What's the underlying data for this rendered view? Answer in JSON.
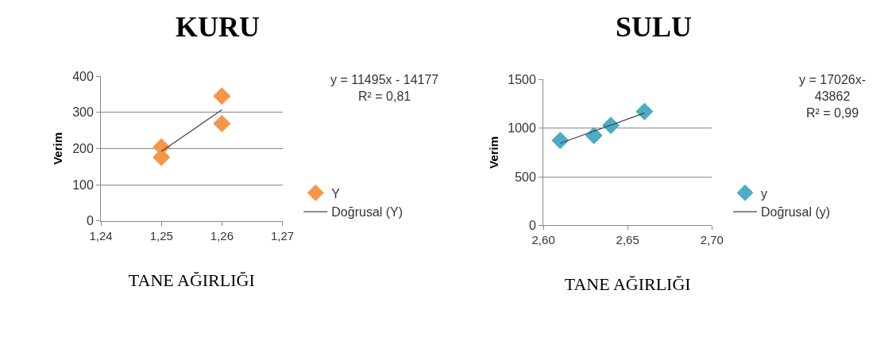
{
  "chart_data": [
    {
      "type": "scatter",
      "title": "KURU",
      "xlabel": "TANE AĞIRLIĞI",
      "ylabel": "Verim",
      "x": [
        1.25,
        1.25,
        1.26,
        1.26
      ],
      "series": [
        {
          "name": "Y",
          "color": "#f79646",
          "values": [
            204,
            176,
            345,
            269
          ]
        },
        {
          "name": "Doğrusal (Y)",
          "type": "line",
          "color": "#404040",
          "x": [
            1.25,
            1.26
          ],
          "values": [
            192,
            307
          ],
          "marker": "none"
        }
      ],
      "xlim": [
        1.24,
        1.27
      ],
      "xticks": [
        {
          "value": 1.24,
          "label": "1,24"
        },
        {
          "value": 1.25,
          "label": "1,25"
        },
        {
          "value": 1.26,
          "label": "1,26"
        },
        {
          "value": 1.27,
          "label": "1,27"
        }
      ],
      "ylim": [
        0,
        400
      ],
      "yticks": [
        0,
        100,
        200,
        300,
        400
      ],
      "grid": "y",
      "legend": "right",
      "marker": "diamond",
      "annotations": [
        "y = 11495x - 14177\nR² = 0,81"
      ]
    },
    {
      "type": "scatter",
      "title": "SULU",
      "xlabel": "TANE AĞIRLIĞI",
      "ylabel": "Verim",
      "x": [
        2.61,
        2.63,
        2.64,
        2.66
      ],
      "series": [
        {
          "name": "y",
          "color": "#4bacc6",
          "values": [
            873,
            924,
            1028,
            1170
          ]
        },
        {
          "name": "Doğrusal (y)",
          "type": "line",
          "color": "#404040",
          "x": [
            2.61,
            2.66
          ],
          "values": [
            845,
            1155
          ],
          "marker": "none"
        }
      ],
      "xlim": [
        2.6,
        2.7
      ],
      "xticks": [
        {
          "value": 2.6,
          "label": "2,60"
        },
        {
          "value": 2.65,
          "label": "2,65"
        },
        {
          "value": 2.7,
          "label": "2,70"
        }
      ],
      "ylim": [
        0,
        1500
      ],
      "yticks": [
        0,
        500,
        1000,
        1500
      ],
      "grid": "y",
      "legend": "right",
      "marker": "diamond",
      "annotations": [
        "y = 17026x-\n43862\nR² = 0,99"
      ]
    }
  ]
}
